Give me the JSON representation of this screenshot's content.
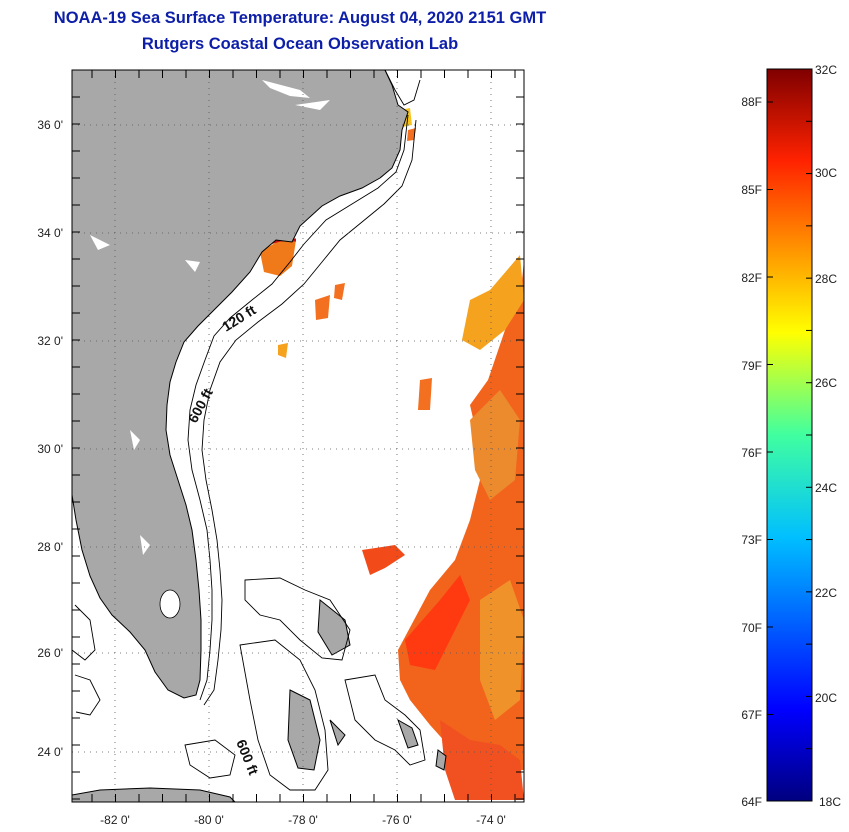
{
  "header": {
    "title": "NOAA-19 Sea Surface Temperature:  August 04, 2020 2151 GMT",
    "subtitle": "Rutgers Coastal Ocean Observation Lab"
  },
  "map": {
    "lon_range": [
      -83,
      -73
    ],
    "lat_range": [
      23,
      37.1
    ],
    "lat_labels": [
      "36 0'",
      "34 0'",
      "32 0'",
      "30 0'",
      "28 0'",
      "26 0'",
      "24 0'"
    ],
    "lon_labels": [
      "-82 0'",
      "-80 0'",
      "-78 0'",
      "-76 0'",
      "-74 0'"
    ],
    "isobath_labels": [
      "120 ft",
      "600 ft",
      "600 ft"
    ],
    "colors": {
      "land": "#a8a8a8",
      "ocean": "#ffffff",
      "grid": "#555555"
    }
  },
  "colorbar": {
    "celsius_labels": [
      "32C",
      "30C",
      "28C",
      "26C",
      "24C",
      "22C",
      "20C",
      "18C"
    ],
    "fahrenheit_labels": [
      "88F",
      "85F",
      "82F",
      "79F",
      "76F",
      "73F",
      "70F",
      "67F",
      "64F"
    ],
    "range_c": [
      18,
      32
    ]
  }
}
